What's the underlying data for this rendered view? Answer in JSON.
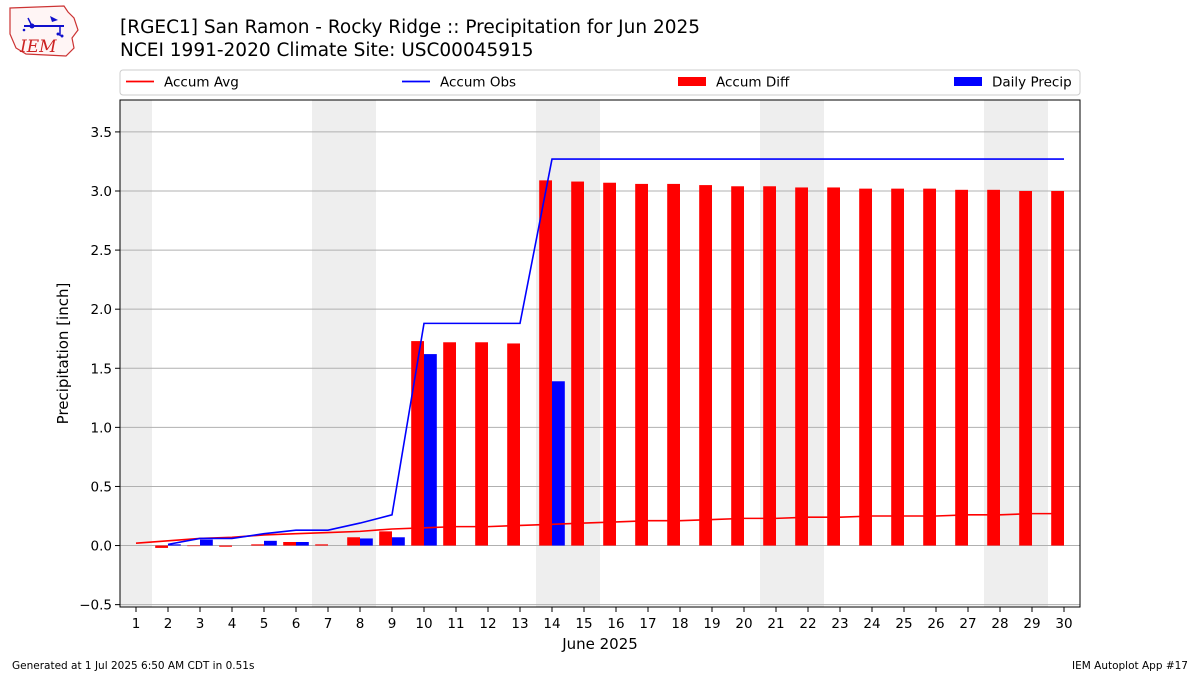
{
  "header": {
    "title_line1": "[RGEC1] San Ramon - Rocky Ridge :: Precipitation for Jun 2025",
    "title_line2": "NCEI 1991-2020 Climate Site: USC00045915",
    "logo_text": "IEM"
  },
  "footer": {
    "generated": "Generated at 1 Jul 2025 6:50 AM CDT in 0.51s",
    "app": "IEM Autoplot App #17"
  },
  "colors": {
    "accum_avg": "#ff0000",
    "accum_obs": "#0000ff",
    "accum_diff": "#ff0000",
    "daily_precip": "#0000ff",
    "weekend_shade": "#eeeeee",
    "grid": "#b0b0b0"
  },
  "chart_data": {
    "type": "bar",
    "xlabel": "June 2025",
    "ylabel": "Precipitation [inch]",
    "xlim": [
      0.5,
      30.5
    ],
    "ylim": [
      -0.52,
      3.77
    ],
    "yticks": [
      -0.5,
      0.0,
      0.5,
      1.0,
      1.5,
      2.0,
      2.5,
      3.0,
      3.5
    ],
    "ytick_labels": [
      "−0.5",
      "0.0",
      "0.5",
      "1.0",
      "1.5",
      "2.0",
      "2.5",
      "3.0",
      "3.5"
    ],
    "grid": "horizontal",
    "legend_position": "top",
    "legend": [
      "Accum Avg",
      "Accum Obs",
      "Accum Diff",
      "Daily Precip"
    ],
    "days": [
      1,
      2,
      3,
      4,
      5,
      6,
      7,
      8,
      9,
      10,
      11,
      12,
      13,
      14,
      15,
      16,
      17,
      18,
      19,
      20,
      21,
      22,
      23,
      24,
      25,
      26,
      27,
      28,
      29,
      30
    ],
    "x_tick_labels": [
      "1",
      "2",
      "3",
      "4",
      "5",
      "6",
      "7",
      "8",
      "9",
      "10",
      "11",
      "12",
      "13",
      "14",
      "15",
      "16",
      "17",
      "18",
      "19",
      "20",
      "21",
      "22",
      "23",
      "24",
      "25",
      "26",
      "27",
      "28",
      "29",
      "30"
    ],
    "weekend_shading": [
      [
        0.5,
        1.5
      ],
      [
        6.5,
        8.5
      ],
      [
        13.5,
        15.5
      ],
      [
        20.5,
        22.5
      ],
      [
        27.5,
        29.5
      ]
    ],
    "series": [
      {
        "name": "Accum Avg",
        "kind": "line",
        "values": [
          0.02,
          0.04,
          0.06,
          0.07,
          0.09,
          0.1,
          0.11,
          0.12,
          0.14,
          0.15,
          0.16,
          0.16,
          0.17,
          0.18,
          0.19,
          0.2,
          0.21,
          0.21,
          0.22,
          0.23,
          0.23,
          0.24,
          0.24,
          0.25,
          0.25,
          0.25,
          0.26,
          0.26,
          0.27,
          0.27
        ]
      },
      {
        "name": "Accum Obs",
        "kind": "line",
        "start_day": 2,
        "values": [
          0.01,
          0.06,
          0.06,
          0.1,
          0.13,
          0.13,
          0.19,
          0.26,
          1.88,
          1.88,
          1.88,
          1.88,
          3.27,
          3.27,
          3.27,
          3.27,
          3.27,
          3.27,
          3.27,
          3.27,
          3.27,
          3.27,
          3.27,
          3.27,
          3.27,
          3.27,
          3.27,
          3.27,
          3.27
        ]
      },
      {
        "name": "Accum Diff",
        "kind": "bar",
        "start_day": 2,
        "values": [
          -0.02,
          0.0,
          -0.01,
          0.01,
          0.03,
          0.01,
          0.07,
          0.12,
          1.73,
          1.72,
          1.72,
          1.71,
          3.09,
          3.08,
          3.07,
          3.06,
          3.06,
          3.05,
          3.04,
          3.04,
          3.03,
          3.03,
          3.02,
          3.02,
          3.02,
          3.01,
          3.01,
          3.0,
          3.0
        ]
      },
      {
        "name": "Daily Precip",
        "kind": "bar",
        "days": [
          2,
          3,
          5,
          6,
          8,
          9,
          10,
          14
        ],
        "values": [
          0.01,
          0.05,
          0.04,
          0.03,
          0.06,
          0.07,
          1.62,
          1.39
        ]
      }
    ]
  }
}
